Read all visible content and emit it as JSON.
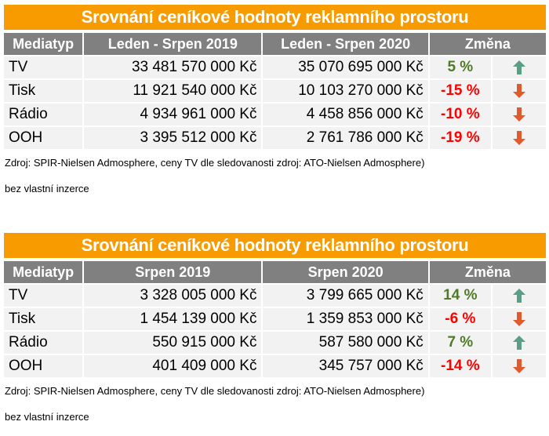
{
  "colors": {
    "title_bg": "#f79b00",
    "header_bg": "#808080",
    "positive": "#4f7a28",
    "negative": "#ff0000",
    "arrow_up": "#5a9e85",
    "arrow_down": "#e05a2b"
  },
  "tables": [
    {
      "title": "Srovnání ceníkové hodnoty reklamního prostoru",
      "headers": [
        "Mediatyp",
        "Leden - Srpen 2019",
        "Leden - Srpen 2020",
        "Změna"
      ],
      "rows": [
        {
          "media": "TV",
          "v1": "33 481 570 000 Kč",
          "v2": "35 070 695 000 Kč",
          "change": "5 %",
          "dir": "up"
        },
        {
          "media": "Tisk",
          "v1": "11 921 540 000 Kč",
          "v2": "10 103 270 000 Kč",
          "change": "-15 %",
          "dir": "down"
        },
        {
          "media": "Rádio",
          "v1": "4 934 961 000 Kč",
          "v2": "4 458 856 000 Kč",
          "change": "-10 %",
          "dir": "down"
        },
        {
          "media": "OOH",
          "v1": "3 395 512 000 Kč",
          "v2": "2 761 786 000 Kč",
          "change": "-19 %",
          "dir": "down"
        }
      ],
      "source": "Zdroj: SPIR-Nielsen Admosphere, ceny TV dle sledovanosti zdroj: ATO-Nielsen Admosphere)",
      "note": "bez vlastní inzerce"
    },
    {
      "title": "Srovnání ceníkové hodnoty reklamního prostoru",
      "headers": [
        "Mediatyp",
        "Srpen 2019",
        "Srpen 2020",
        "Změna"
      ],
      "rows": [
        {
          "media": "TV",
          "v1": "3 328 005 000 Kč",
          "v2": "3 799 665 000 Kč",
          "change": "14 %",
          "dir": "up"
        },
        {
          "media": "Tisk",
          "v1": "1 454 139 000 Kč",
          "v2": "1 359 853 000 Kč",
          "change": "-6 %",
          "dir": "down"
        },
        {
          "media": "Rádio",
          "v1": "550 915 000 Kč",
          "v2": "587 580 000 Kč",
          "change": "7 %",
          "dir": "up"
        },
        {
          "media": "OOH",
          "v1": "401 409 000 Kč",
          "v2": "345 757 000 Kč",
          "change": "-14 %",
          "dir": "down"
        }
      ],
      "source": "Zdroj: SPIR-Nielsen Admosphere, ceny TV dle sledovanosti zdroj: ATO-Nielsen Admosphere)",
      "note": "bez vlastní inzerce"
    }
  ]
}
